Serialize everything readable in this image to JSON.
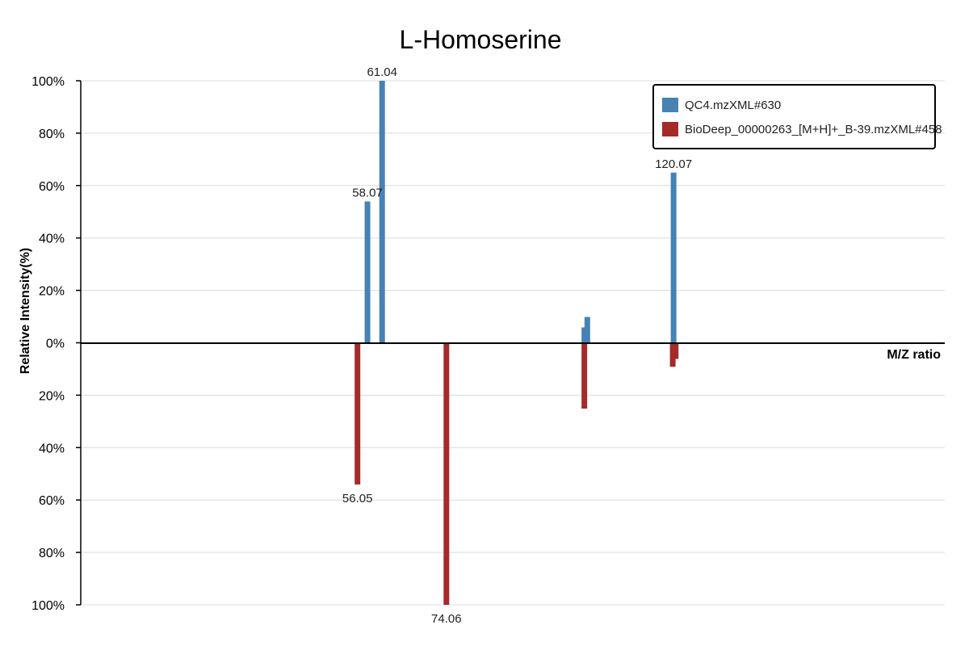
{
  "chart_data": {
    "type": "bar",
    "title": "L-Homoserine",
    "xlabel": "M/Z ratio",
    "ylabel": "Relative Intensity(%)",
    "ylim": [
      -100,
      100
    ],
    "y_ticks": [
      "100%",
      "80%",
      "60%",
      "40%",
      "20%",
      "0%",
      "20%",
      "40%",
      "60%",
      "80%",
      "100%"
    ],
    "x_ticks_visible": false,
    "grid": true,
    "legend_position": "top-right",
    "series": [
      {
        "name": "QC4.mzXML#630",
        "color": "#4682b4",
        "direction": "up",
        "peaks": [
          {
            "mz": 58.07,
            "intensity": 54,
            "label": "58.07"
          },
          {
            "mz": 61.04,
            "intensity": 100,
            "label": "61.04"
          },
          {
            "mz": 102.0,
            "intensity": 6
          },
          {
            "mz": 102.6,
            "intensity": 10
          },
          {
            "mz": 120.07,
            "intensity": 65,
            "label": "120.07"
          }
        ]
      },
      {
        "name": "BioDeep_00000263_[M+H]+_B-39.mzXML#458",
        "color": "#a52a2a",
        "direction": "down",
        "peaks": [
          {
            "mz": 56.05,
            "intensity": 54,
            "label": "56.05"
          },
          {
            "mz": 74.06,
            "intensity": 100,
            "label": "74.06"
          },
          {
            "mz": 102.0,
            "intensity": 25
          },
          {
            "mz": 119.9,
            "intensity": 9
          },
          {
            "mz": 120.5,
            "intensity": 6
          }
        ]
      }
    ]
  }
}
